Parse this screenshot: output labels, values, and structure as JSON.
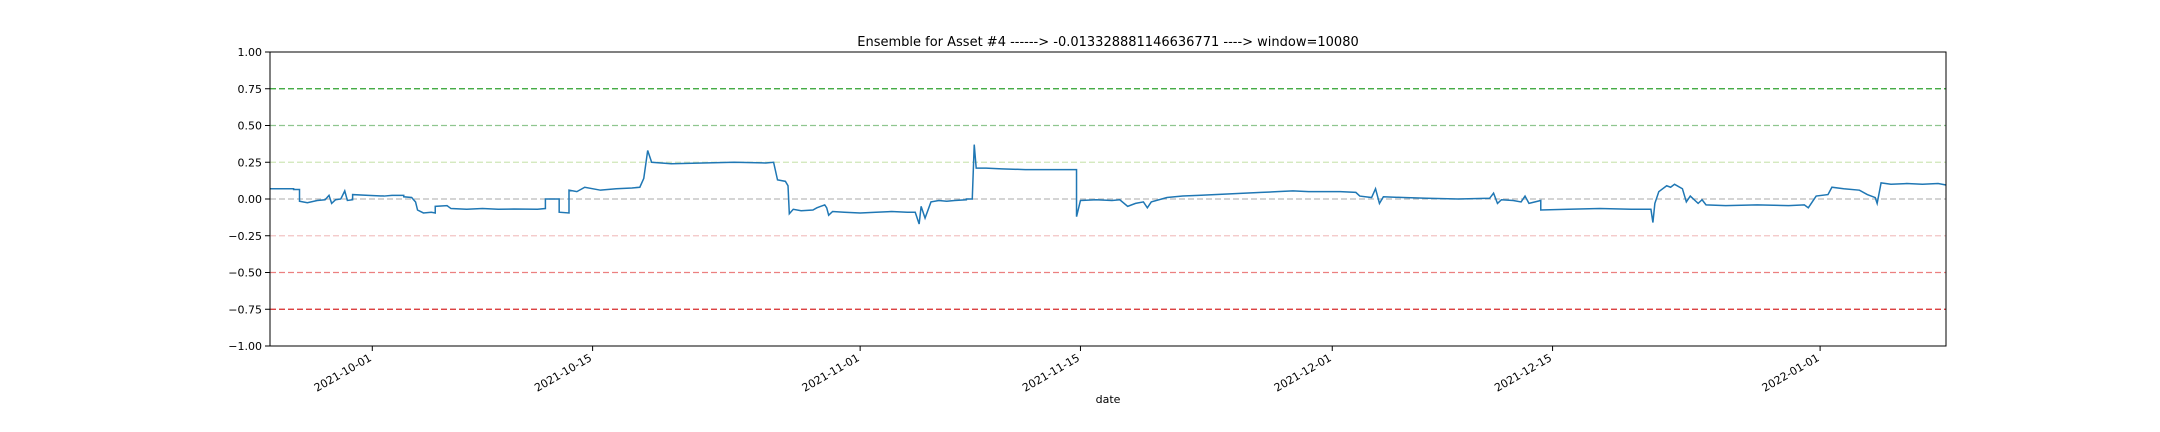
{
  "chart_data": {
    "type": "line",
    "title": "Ensemble for Asset #4 ------> -0.013328881146636771 ----> window=10080",
    "xlabel": "date",
    "ylabel": "",
    "x_range": [
      "2021-09-24T12:00",
      "2022-01-09T00:00"
    ],
    "ylim": [
      -1.0,
      1.0
    ],
    "x_tick_labels": [
      "2021-10-01",
      "2021-10-15",
      "2021-11-01",
      "2021-11-15",
      "2021-12-01",
      "2021-12-15",
      "2022-01-01"
    ],
    "y_tick_labels": [
      "1.00",
      "0.75",
      "0.50",
      "0.25",
      "0.00",
      "−0.25",
      "−0.50",
      "−0.75",
      "−1.00"
    ],
    "y_ticks": [
      1.0,
      0.75,
      0.5,
      0.25,
      0.0,
      -0.25,
      -0.5,
      -0.75,
      -1.0
    ],
    "grid": false,
    "reference_lines": [
      {
        "y": 0.75,
        "color": "#2ca02c"
      },
      {
        "y": 0.5,
        "color": "#8fc68f"
      },
      {
        "y": 0.25,
        "color": "#cfe6b8"
      },
      {
        "y": 0.0,
        "color": "#bbbbbb"
      },
      {
        "y": -0.25,
        "color": "#f2c4c4"
      },
      {
        "y": -0.5,
        "color": "#ec8080"
      },
      {
        "y": -0.75,
        "color": "#d62728"
      }
    ],
    "series": [
      {
        "color": "#1f77b4",
        "points": [
          [
            "2021-09-24T12:00",
            0.07
          ],
          [
            "2021-09-26T00:00",
            0.07
          ],
          [
            "2021-09-26T00:00",
            0.065
          ],
          [
            "2021-09-26T09:00",
            0.065
          ],
          [
            "2021-09-26T09:00",
            -0.015
          ],
          [
            "2021-09-26T21:00",
            -0.025
          ],
          [
            "2021-09-27T12:00",
            -0.01
          ],
          [
            "2021-09-28T00:00",
            -0.005
          ],
          [
            "2021-09-28T06:00",
            0.025
          ],
          [
            "2021-09-28T10:00",
            -0.03
          ],
          [
            "2021-09-28T16:00",
            -0.005
          ],
          [
            "2021-09-29T00:00",
            0.0
          ],
          [
            "2021-09-29T06:00",
            0.055
          ],
          [
            "2021-09-29T10:00",
            -0.01
          ],
          [
            "2021-09-29T18:00",
            -0.005
          ],
          [
            "2021-09-29T18:00",
            0.03
          ],
          [
            "2021-09-30T18:00",
            0.025
          ],
          [
            "2021-10-01T18:00",
            0.02
          ],
          [
            "2021-10-02T06:00",
            0.025
          ],
          [
            "2021-10-03T00:00",
            0.025
          ],
          [
            "2021-10-03T00:00",
            0.015
          ],
          [
            "2021-10-03T12:00",
            0.01
          ],
          [
            "2021-10-03T18:00",
            -0.02
          ],
          [
            "2021-10-03T21:00",
            -0.075
          ],
          [
            "2021-10-04T06:00",
            -0.095
          ],
          [
            "2021-10-04T18:00",
            -0.09
          ],
          [
            "2021-10-05T00:00",
            -0.095
          ],
          [
            "2021-10-05T00:00",
            -0.05
          ],
          [
            "2021-10-05T18:00",
            -0.045
          ],
          [
            "2021-10-06T00:00",
            -0.065
          ],
          [
            "2021-10-07T00:00",
            -0.07
          ],
          [
            "2021-10-08T00:00",
            -0.065
          ],
          [
            "2021-10-09T00:00",
            -0.07
          ],
          [
            "2021-10-10T00:00",
            -0.068
          ],
          [
            "2021-10-11T12:00",
            -0.07
          ],
          [
            "2021-10-12T00:00",
            -0.065
          ],
          [
            "2021-10-12T00:00",
            0.0
          ],
          [
            "2021-10-12T21:00",
            0.0
          ],
          [
            "2021-10-12T21:00",
            -0.09
          ],
          [
            "2021-10-13T12:00",
            -0.095
          ],
          [
            "2021-10-13T12:00",
            0.06
          ],
          [
            "2021-10-14T00:00",
            0.05
          ],
          [
            "2021-10-14T12:00",
            0.08
          ],
          [
            "2021-10-15T12:00",
            0.06
          ],
          [
            "2021-10-16T12:00",
            0.07
          ],
          [
            "2021-10-17T12:00",
            0.075
          ],
          [
            "2021-10-18T00:00",
            0.08
          ],
          [
            "2021-10-18T06:00",
            0.14
          ],
          [
            "2021-10-18T12:00",
            0.33
          ],
          [
            "2021-10-18T18:00",
            0.25
          ],
          [
            "2021-10-20T00:00",
            0.24
          ],
          [
            "2021-10-22T00:00",
            0.245
          ],
          [
            "2021-10-24T00:00",
            0.25
          ],
          [
            "2021-10-26T00:00",
            0.245
          ],
          [
            "2021-10-26T12:00",
            0.25
          ],
          [
            "2021-10-26T18:00",
            0.13
          ],
          [
            "2021-10-27T06:00",
            0.12
          ],
          [
            "2021-10-27T10:00",
            0.09
          ],
          [
            "2021-10-27T12:00",
            -0.1
          ],
          [
            "2021-10-27T18:00",
            -0.07
          ],
          [
            "2021-10-28T06:00",
            -0.08
          ],
          [
            "2021-10-29T00:00",
            -0.075
          ],
          [
            "2021-10-29T06:00",
            -0.06
          ],
          [
            "2021-10-29T12:00",
            -0.05
          ],
          [
            "2021-10-29T18:00",
            -0.04
          ],
          [
            "2021-10-29T21:00",
            -0.06
          ],
          [
            "2021-10-30T00:00",
            -0.11
          ],
          [
            "2021-10-30T06:00",
            -0.085
          ],
          [
            "2021-10-31T00:00",
            -0.09
          ],
          [
            "2021-11-01T00:00",
            -0.095
          ],
          [
            "2021-11-02T00:00",
            -0.09
          ],
          [
            "2021-11-03T00:00",
            -0.085
          ],
          [
            "2021-11-04T00:00",
            -0.09
          ],
          [
            "2021-11-04T12:00",
            -0.09
          ],
          [
            "2021-11-04T18:00",
            -0.17
          ],
          [
            "2021-11-04T21:00",
            -0.05
          ],
          [
            "2021-11-05T03:00",
            -0.13
          ],
          [
            "2021-11-05T12:00",
            -0.02
          ],
          [
            "2021-11-06T00:00",
            -0.01
          ],
          [
            "2021-11-06T12:00",
            -0.015
          ],
          [
            "2021-11-07T00:00",
            -0.01
          ],
          [
            "2021-11-07T18:00",
            -0.005
          ],
          [
            "2021-11-07T18:00",
            0.0
          ],
          [
            "2021-11-08T03:00",
            0.0
          ],
          [
            "2021-11-08T06:00",
            0.37
          ],
          [
            "2021-11-08T09:00",
            0.21
          ],
          [
            "2021-11-09T00:00",
            0.21
          ],
          [
            "2021-11-10T00:00",
            0.205
          ],
          [
            "2021-11-11T12:00",
            0.2
          ],
          [
            "2021-11-13T00:00",
            0.2
          ],
          [
            "2021-11-14T18:00",
            0.2
          ],
          [
            "2021-11-14T18:00",
            -0.12
          ],
          [
            "2021-11-15T00:00",
            -0.01
          ],
          [
            "2021-11-16T00:00",
            -0.005
          ],
          [
            "2021-11-17T00:00",
            -0.01
          ],
          [
            "2021-11-17T12:00",
            -0.005
          ],
          [
            "2021-11-18T00:00",
            -0.05
          ],
          [
            "2021-11-18T12:00",
            -0.03
          ],
          [
            "2021-11-19T00:00",
            -0.02
          ],
          [
            "2021-11-19T06:00",
            -0.06
          ],
          [
            "2021-11-19T12:00",
            -0.02
          ],
          [
            "2021-11-20T12:00",
            0.01
          ],
          [
            "2021-11-21T12:00",
            0.02
          ],
          [
            "2021-11-22T12:00",
            0.025
          ],
          [
            "2021-11-23T12:00",
            0.03
          ],
          [
            "2021-11-24T12:00",
            0.035
          ],
          [
            "2021-11-25T12:00",
            0.04
          ],
          [
            "2021-11-26T12:00",
            0.045
          ],
          [
            "2021-11-27T12:00",
            0.05
          ],
          [
            "2021-11-28T12:00",
            0.055
          ],
          [
            "2021-11-29T12:00",
            0.05
          ],
          [
            "2021-11-30T12:00",
            0.05
          ],
          [
            "2021-12-01T12:00",
            0.05
          ],
          [
            "2021-12-02T12:00",
            0.045
          ],
          [
            "2021-12-02T18:00",
            0.02
          ],
          [
            "2021-12-03T12:00",
            0.01
          ],
          [
            "2021-12-03T18:00",
            0.07
          ],
          [
            "2021-12-04T00:00",
            -0.03
          ],
          [
            "2021-12-04T06:00",
            0.015
          ],
          [
            "2021-12-05T12:00",
            0.01
          ],
          [
            "2021-12-07T00:00",
            0.005
          ],
          [
            "2021-12-09T00:00",
            0.0
          ],
          [
            "2021-12-11T00:00",
            0.005
          ],
          [
            "2021-12-11T06:00",
            0.04
          ],
          [
            "2021-12-11T12:00",
            -0.03
          ],
          [
            "2021-12-11T18:00",
            -0.005
          ],
          [
            "2021-12-12T12:00",
            -0.01
          ],
          [
            "2021-12-13T00:00",
            -0.02
          ],
          [
            "2021-12-13T06:00",
            0.02
          ],
          [
            "2021-12-13T12:00",
            -0.03
          ],
          [
            "2021-12-14T06:00",
            -0.01
          ],
          [
            "2021-12-14T06:00",
            -0.075
          ],
          [
            "2021-12-16T00:00",
            -0.07
          ],
          [
            "2021-12-18T00:00",
            -0.065
          ],
          [
            "2021-12-20T00:00",
            -0.07
          ],
          [
            "2021-12-21T06:00",
            -0.07
          ],
          [
            "2021-12-21T09:00",
            -0.16
          ],
          [
            "2021-12-21T12:00",
            -0.03
          ],
          [
            "2021-12-21T18:00",
            0.05
          ],
          [
            "2021-12-22T06:00",
            0.09
          ],
          [
            "2021-12-22T12:00",
            0.08
          ],
          [
            "2021-12-22T18:00",
            0.1
          ],
          [
            "2021-12-23T06:00",
            0.07
          ],
          [
            "2021-12-23T12:00",
            -0.02
          ],
          [
            "2021-12-23T18:00",
            0.02
          ],
          [
            "2021-12-24T06:00",
            -0.03
          ],
          [
            "2021-12-24T12:00",
            -0.005
          ],
          [
            "2021-12-24T18:00",
            -0.04
          ],
          [
            "2021-12-26T00:00",
            -0.045
          ],
          [
            "2021-12-28T00:00",
            -0.04
          ],
          [
            "2021-12-30T00:00",
            -0.045
          ],
          [
            "2021-12-31T00:00",
            -0.04
          ],
          [
            "2021-12-31T06:00",
            -0.06
          ],
          [
            "2021-12-31T12:00",
            -0.02
          ],
          [
            "2021-12-31T18:00",
            0.02
          ],
          [
            "2022-01-01T12:00",
            0.03
          ],
          [
            "2022-01-01T18:00",
            0.08
          ],
          [
            "2022-01-02T12:00",
            0.07
          ],
          [
            "2022-01-03T12:00",
            0.06
          ],
          [
            "2022-01-04T00:00",
            0.03
          ],
          [
            "2022-01-04T12:00",
            0.01
          ],
          [
            "2022-01-04T15:00",
            -0.03
          ],
          [
            "2022-01-04T18:00",
            0.04
          ],
          [
            "2022-01-04T21:00",
            0.11
          ],
          [
            "2022-01-05T12:00",
            0.1
          ],
          [
            "2022-01-06T12:00",
            0.105
          ],
          [
            "2022-01-07T12:00",
            0.1
          ],
          [
            "2022-01-08T12:00",
            0.105
          ],
          [
            "2022-01-09T00:00",
            0.095
          ]
        ]
      }
    ]
  }
}
